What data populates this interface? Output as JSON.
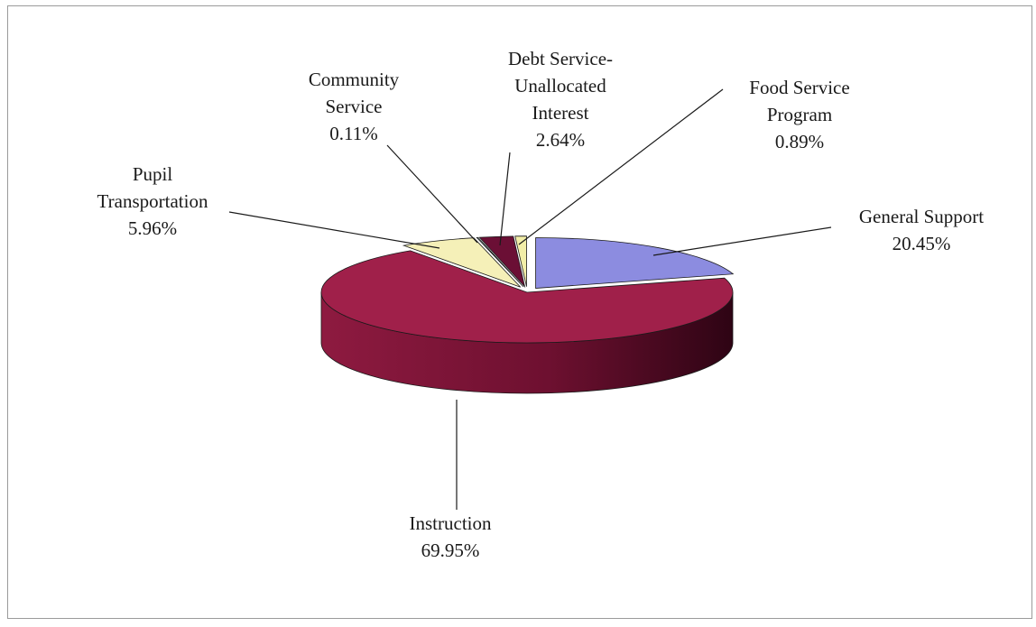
{
  "chart_data": {
    "type": "pie",
    "style": "3d-exploded-pie",
    "title": "",
    "slices": [
      {
        "label_lines": [
          "General Support"
        ],
        "value": 20.45,
        "value_text": "20.45%",
        "color": "#8C8CE0"
      },
      {
        "label_lines": [
          "Instruction"
        ],
        "value": 69.95,
        "value_text": "69.95%",
        "color": "#A0204A"
      },
      {
        "label_lines": [
          "Pupil",
          "Transportation"
        ],
        "value": 5.96,
        "value_text": "5.96%",
        "color": "#F5F0B8"
      },
      {
        "label_lines": [
          "Community",
          "Service"
        ],
        "value": 0.11,
        "value_text": "0.11%",
        "color": "#CCF7F7"
      },
      {
        "label_lines": [
          "Debt Service-",
          "Unallocated",
          "Interest"
        ],
        "value": 2.64,
        "value_text": "2.64%",
        "color": "#6B0F35"
      },
      {
        "label_lines": [
          "Food Service",
          "Program"
        ],
        "value": 0.89,
        "value_text": "0.89%",
        "color": "#F2EEA8"
      }
    ]
  }
}
